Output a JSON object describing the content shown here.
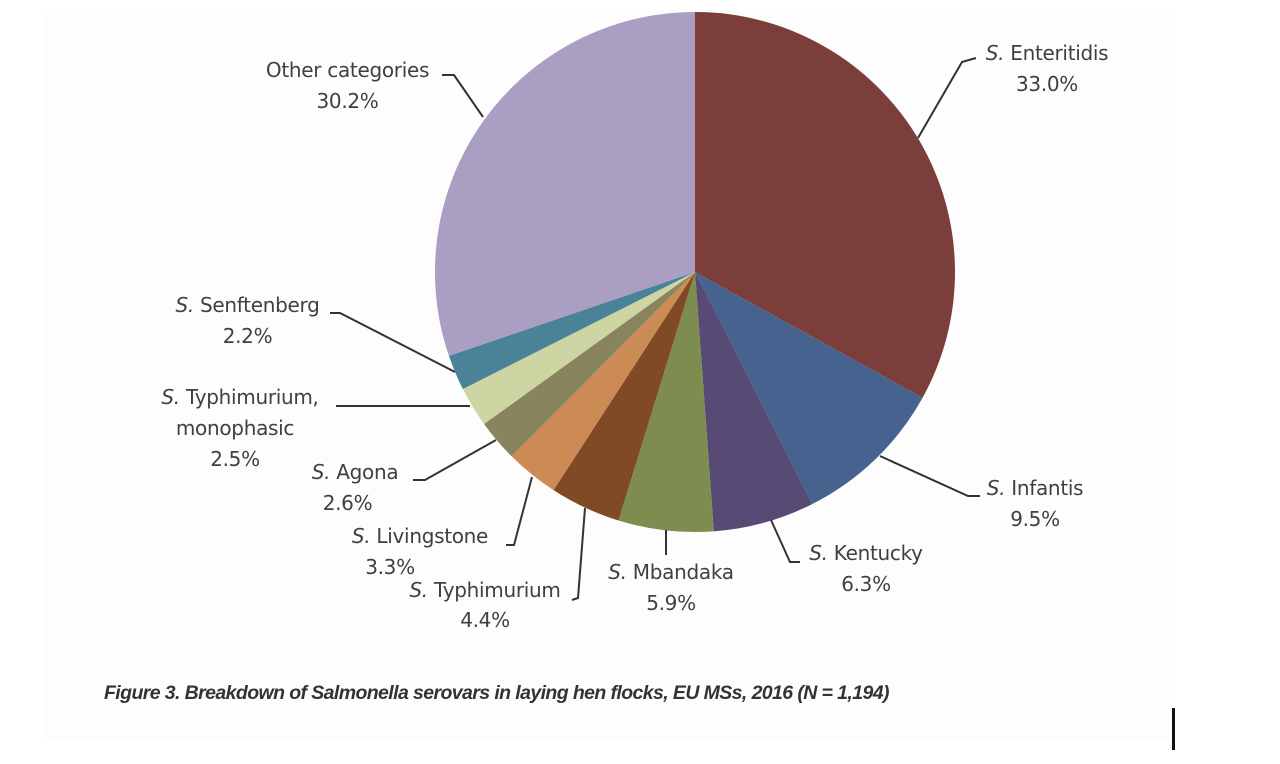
{
  "chart_data": {
    "type": "pie",
    "title": "Figure 3. Breakdown of Salmonella serovars in laying hen flocks, EU MSs, 2016 (N = 1,194)",
    "unit": "%",
    "start_angle": "12 o'clock, clockwise",
    "categories": [
      "S. Enteritidis",
      "S. Infantis",
      "S. Kentucky",
      "S. Mbandaka",
      "S. Typhimurium",
      "S. Livingstone",
      "S. Agona",
      "S. Typhimurium, monophasic",
      "S. Senftenberg",
      "Other categories"
    ],
    "values": [
      33.0,
      9.5,
      6.3,
      5.9,
      4.4,
      3.3,
      2.6,
      2.5,
      2.2,
      30.2
    ],
    "colors": [
      "#7b3e3a",
      "#46628f",
      "#574a75",
      "#7d8c4f",
      "#7f4a24",
      "#cc8a55",
      "#8a845e",
      "#cdd6a3",
      "#4a8297",
      "#aa9fc2"
    ],
    "legend": "none (data labels with leader lines)"
  },
  "labels": [
    {
      "prefix": "S.",
      "name": "Enteritidis",
      "value": "33.0%"
    },
    {
      "prefix": "S.",
      "name": "Infantis",
      "value": "9.5%"
    },
    {
      "prefix": "S.",
      "name": "Kentucky",
      "value": "6.3%"
    },
    {
      "prefix": "S.",
      "name": "Mbandaka",
      "value": "5.9%"
    },
    {
      "prefix": "S.",
      "name": "Typhimurium",
      "value": "4.4%"
    },
    {
      "prefix": "S.",
      "name": "Livingstone",
      "value": "3.3%"
    },
    {
      "prefix": "S.",
      "name": "Agona",
      "value": "2.6%"
    },
    {
      "prefix": "S.",
      "name": "Typhimurium,",
      "name2": "monophasic",
      "value": "2.5%"
    },
    {
      "prefix": "S.",
      "name": "Senftenberg",
      "value": "2.2%"
    },
    {
      "prefix": "",
      "name": "Other categories",
      "value": "30.2%"
    }
  ],
  "caption": "Figure 3. Breakdown of Salmonella serovars in laying hen flocks, EU MSs, 2016 (N = 1,194)"
}
